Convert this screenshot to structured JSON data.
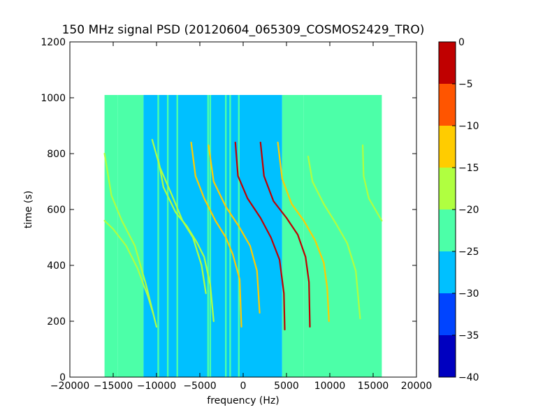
{
  "chart_data": {
    "type": "heatmap",
    "title": "150 MHz signal PSD (20120604_065309_COSMOS2429_TRO)",
    "xlabel": "frequency (Hz)",
    "ylabel": "time (s)",
    "xlim": [
      -20000,
      20000
    ],
    "ylim": [
      0,
      1200
    ],
    "xticks": [
      -20000,
      -15000,
      -10000,
      -5000,
      0,
      5000,
      10000,
      15000,
      20000
    ],
    "xtick_labels": [
      "−20000",
      "−15000",
      "−10000",
      "−5000",
      "0",
      "5000",
      "10000",
      "15000",
      "20000"
    ],
    "yticks": [
      0,
      200,
      400,
      600,
      800,
      1000,
      1200
    ],
    "ytick_labels": [
      "0",
      "200",
      "400",
      "600",
      "800",
      "1000",
      "1200"
    ],
    "grid": false,
    "data_extent": {
      "x": [
        -16000,
        16000
      ],
      "y": [
        0,
        1010
      ]
    },
    "colorbar": {
      "levels": [
        0,
        -5,
        -10,
        -15,
        -20,
        -25,
        -30,
        -35,
        -40
      ],
      "tick_labels": [
        "0",
        "−5",
        "−10",
        "−15",
        "−20",
        "−25",
        "−30",
        "−35",
        "−40"
      ],
      "colors": [
        "#c00000",
        "#ff5500",
        "#ffcc00",
        "#b0ff40",
        "#4cffa8",
        "#00c0ff",
        "#0044ff",
        "#0000c0"
      ]
    },
    "background_regions": [
      {
        "x": [
          -16000,
          -14500
        ],
        "level": -22
      },
      {
        "x": [
          -14500,
          -11500
        ],
        "level": -22
      },
      {
        "x": [
          -11500,
          -7500
        ],
        "level": -26
      },
      {
        "x": [
          -7500,
          4500
        ],
        "level": -27
      },
      {
        "x": [
          4500,
          7000
        ],
        "level": -24
      },
      {
        "x": [
          7000,
          16000
        ],
        "level": -22
      }
    ],
    "vertical_lines": [
      {
        "x": -9800,
        "level": -22
      },
      {
        "x": -8700,
        "level": -22
      },
      {
        "x": -7600,
        "level": -20
      },
      {
        "x": -4050,
        "level": -22
      },
      {
        "x": -3800,
        "level": -22
      },
      {
        "x": -2000,
        "level": -22
      },
      {
        "x": -1500,
        "level": -22
      },
      {
        "x": -500,
        "level": -22
      }
    ],
    "tracks": [
      {
        "level": -17,
        "points": [
          [
            -16000,
            800
          ],
          [
            -15200,
            650
          ],
          [
            -14000,
            560
          ],
          [
            -12500,
            470
          ],
          [
            -11200,
            330
          ],
          [
            -10000,
            180
          ]
        ]
      },
      {
        "level": -17,
        "points": [
          [
            -16000,
            560
          ],
          [
            -15000,
            530
          ],
          [
            -13500,
            470
          ],
          [
            -12200,
            390
          ],
          [
            -11000,
            290
          ],
          [
            -10400,
            230
          ]
        ]
      },
      {
        "level": -17,
        "points": [
          [
            -9800,
            780
          ],
          [
            -9200,
            680
          ],
          [
            -7800,
            590
          ],
          [
            -6500,
            540
          ],
          [
            -5300,
            480
          ],
          [
            -4500,
            430
          ],
          [
            -3800,
            330
          ],
          [
            -3400,
            200
          ]
        ]
      },
      {
        "level": -17,
        "points": [
          [
            -10500,
            850
          ],
          [
            -9600,
            750
          ],
          [
            -8200,
            650
          ],
          [
            -7000,
            560
          ],
          [
            -5800,
            500
          ],
          [
            -4800,
            400
          ],
          [
            -4300,
            300
          ]
        ]
      },
      {
        "level": -12,
        "points": [
          [
            -6000,
            840
          ],
          [
            -5500,
            720
          ],
          [
            -4500,
            640
          ],
          [
            -3200,
            560
          ],
          [
            -2000,
            500
          ],
          [
            -1200,
            440
          ],
          [
            -400,
            350
          ],
          [
            -200,
            180
          ]
        ]
      },
      {
        "level": -12,
        "points": [
          [
            -4000,
            830
          ],
          [
            -3400,
            700
          ],
          [
            -2000,
            610
          ],
          [
            -500,
            540
          ],
          [
            800,
            470
          ],
          [
            1600,
            380
          ],
          [
            1900,
            230
          ]
        ]
      },
      {
        "level": -3,
        "points": [
          [
            -900,
            840
          ],
          [
            -600,
            720
          ],
          [
            500,
            640
          ],
          [
            2000,
            570
          ],
          [
            3200,
            500
          ],
          [
            4200,
            420
          ],
          [
            4700,
            300
          ],
          [
            4800,
            170
          ]
        ]
      },
      {
        "level": -3,
        "points": [
          [
            2000,
            840
          ],
          [
            2400,
            720
          ],
          [
            3500,
            630
          ],
          [
            5000,
            570
          ],
          [
            6300,
            510
          ],
          [
            7200,
            430
          ],
          [
            7600,
            340
          ],
          [
            7700,
            180
          ]
        ]
      },
      {
        "level": -12,
        "points": [
          [
            4000,
            840
          ],
          [
            4500,
            710
          ],
          [
            5600,
            620
          ],
          [
            7000,
            560
          ],
          [
            8300,
            490
          ],
          [
            9300,
            410
          ],
          [
            9700,
            320
          ],
          [
            9900,
            200
          ]
        ]
      },
      {
        "level": -17,
        "points": [
          [
            7500,
            790
          ],
          [
            8000,
            700
          ],
          [
            9300,
            620
          ],
          [
            10700,
            550
          ],
          [
            12000,
            480
          ],
          [
            13000,
            380
          ],
          [
            13500,
            210
          ]
        ]
      },
      {
        "level": -17,
        "points": [
          [
            13800,
            830
          ],
          [
            13900,
            720
          ],
          [
            14500,
            640
          ],
          [
            16000,
            560
          ]
        ]
      }
    ]
  }
}
